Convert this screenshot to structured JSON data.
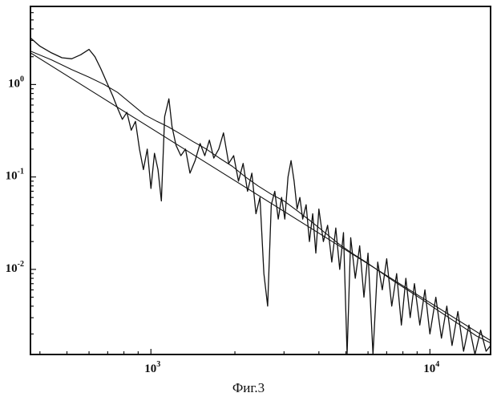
{
  "figure": {
    "caption": "Фиг.3"
  },
  "colors": {
    "ink": "#111111",
    "background": "#ffffff"
  },
  "chart_data": {
    "type": "line",
    "title": "",
    "xlabel": "",
    "ylabel": "",
    "xscale": "log",
    "yscale": "log",
    "xlim": [
      370,
      16500
    ],
    "ylim": [
      0.0012,
      7
    ],
    "grid": false,
    "legend": "none",
    "x_ticks": [
      {
        "value": 1000,
        "base": "10",
        "exp": "3"
      },
      {
        "value": 10000,
        "base": "10",
        "exp": "4"
      }
    ],
    "y_ticks": [
      {
        "value": 1,
        "base": "10",
        "exp": "0"
      },
      {
        "value": 0.1,
        "base": "10",
        "exp": "-1"
      },
      {
        "value": 0.01,
        "base": "10",
        "exp": "-2"
      }
    ],
    "series": [
      {
        "style": "noisy",
        "points": [
          [
            370,
            3.2
          ],
          [
            400,
            2.6
          ],
          [
            440,
            2.2
          ],
          [
            480,
            1.95
          ],
          [
            520,
            1.9
          ],
          [
            560,
            2.1
          ],
          [
            600,
            2.4
          ],
          [
            630,
            2.0
          ],
          [
            660,
            1.5
          ],
          [
            700,
            1.0
          ],
          [
            730,
            0.75
          ],
          [
            760,
            0.55
          ],
          [
            790,
            0.42
          ],
          [
            820,
            0.5
          ],
          [
            850,
            0.32
          ],
          [
            880,
            0.4
          ],
          [
            910,
            0.2
          ],
          [
            940,
            0.12
          ],
          [
            970,
            0.2
          ],
          [
            1000,
            0.075
          ],
          [
            1030,
            0.18
          ],
          [
            1060,
            0.12
          ],
          [
            1090,
            0.055
          ],
          [
            1120,
            0.45
          ],
          [
            1160,
            0.7
          ],
          [
            1190,
            0.35
          ],
          [
            1230,
            0.22
          ],
          [
            1280,
            0.17
          ],
          [
            1330,
            0.2
          ],
          [
            1380,
            0.11
          ],
          [
            1440,
            0.15
          ],
          [
            1500,
            0.23
          ],
          [
            1560,
            0.17
          ],
          [
            1620,
            0.25
          ],
          [
            1680,
            0.16
          ],
          [
            1750,
            0.2
          ],
          [
            1820,
            0.3
          ],
          [
            1900,
            0.14
          ],
          [
            1980,
            0.17
          ],
          [
            2060,
            0.09
          ],
          [
            2140,
            0.14
          ],
          [
            2220,
            0.07
          ],
          [
            2300,
            0.11
          ],
          [
            2380,
            0.04
          ],
          [
            2460,
            0.06
          ],
          [
            2540,
            0.009
          ],
          [
            2620,
            0.004
          ],
          [
            2700,
            0.05
          ],
          [
            2780,
            0.07
          ],
          [
            2860,
            0.035
          ],
          [
            2940,
            0.06
          ],
          [
            3020,
            0.035
          ],
          [
            3100,
            0.1
          ],
          [
            3180,
            0.15
          ],
          [
            3260,
            0.09
          ],
          [
            3340,
            0.045
          ],
          [
            3420,
            0.06
          ],
          [
            3500,
            0.035
          ],
          [
            3600,
            0.05
          ],
          [
            3700,
            0.02
          ],
          [
            3800,
            0.04
          ],
          [
            3900,
            0.015
          ],
          [
            4000,
            0.045
          ],
          [
            4150,
            0.02
          ],
          [
            4300,
            0.03
          ],
          [
            4450,
            0.012
          ],
          [
            4600,
            0.028
          ],
          [
            4750,
            0.01
          ],
          [
            4900,
            0.025
          ],
          [
            5050,
            0.0012
          ],
          [
            5200,
            0.022
          ],
          [
            5400,
            0.008
          ],
          [
            5600,
            0.018
          ],
          [
            5800,
            0.005
          ],
          [
            6000,
            0.015
          ],
          [
            6250,
            0.0012
          ],
          [
            6500,
            0.012
          ],
          [
            6750,
            0.006
          ],
          [
            7000,
            0.013
          ],
          [
            7300,
            0.004
          ],
          [
            7600,
            0.009
          ],
          [
            7900,
            0.0025
          ],
          [
            8200,
            0.008
          ],
          [
            8500,
            0.003
          ],
          [
            8800,
            0.007
          ],
          [
            9200,
            0.0025
          ],
          [
            9600,
            0.006
          ],
          [
            10000,
            0.002
          ],
          [
            10500,
            0.005
          ],
          [
            11000,
            0.0018
          ],
          [
            11500,
            0.004
          ],
          [
            12000,
            0.0015
          ],
          [
            12600,
            0.0035
          ],
          [
            13200,
            0.0013
          ],
          [
            13800,
            0.0025
          ],
          [
            14500,
            0.0012
          ],
          [
            15200,
            0.0022
          ],
          [
            15900,
            0.0013
          ],
          [
            16500,
            0.0015
          ]
        ]
      },
      {
        "style": "smoothed",
        "points": [
          [
            370,
            2.3
          ],
          [
            440,
            1.85
          ],
          [
            520,
            1.45
          ],
          [
            600,
            1.2
          ],
          [
            680,
            1.0
          ],
          [
            760,
            0.82
          ],
          [
            850,
            0.62
          ],
          [
            950,
            0.47
          ],
          [
            1050,
            0.4
          ],
          [
            1150,
            0.35
          ],
          [
            1280,
            0.29
          ],
          [
            1420,
            0.24
          ],
          [
            1580,
            0.2
          ],
          [
            1760,
            0.16
          ],
          [
            1960,
            0.13
          ],
          [
            2180,
            0.1
          ],
          [
            2420,
            0.08
          ],
          [
            2700,
            0.065
          ],
          [
            3000,
            0.055
          ],
          [
            3350,
            0.043
          ],
          [
            3750,
            0.033
          ],
          [
            4200,
            0.025
          ],
          [
            4700,
            0.019
          ],
          [
            5250,
            0.015
          ],
          [
            5900,
            0.012
          ],
          [
            6600,
            0.0095
          ],
          [
            7400,
            0.0075
          ],
          [
            8300,
            0.006
          ],
          [
            9300,
            0.0048
          ],
          [
            10400,
            0.0038
          ],
          [
            11700,
            0.003
          ],
          [
            13100,
            0.0024
          ],
          [
            14700,
            0.0019
          ],
          [
            16500,
            0.0016
          ]
        ]
      },
      {
        "style": "fit",
        "points": [
          [
            370,
            2.2
          ],
          [
            16500,
            0.0017
          ]
        ]
      }
    ]
  }
}
